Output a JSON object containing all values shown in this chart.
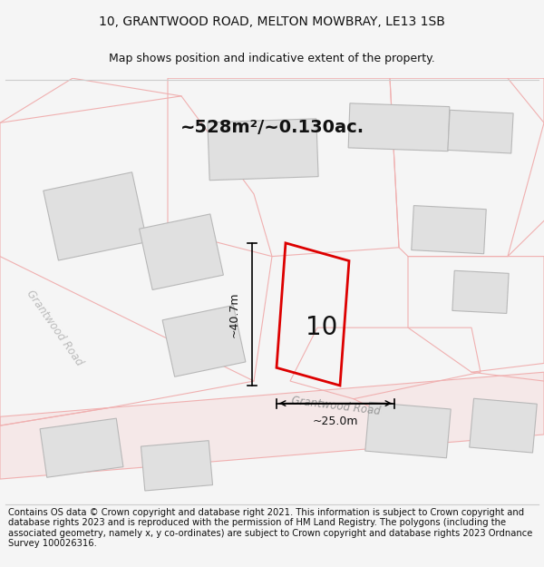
{
  "title_line1": "10, GRANTWOOD ROAD, MELTON MOWBRAY, LE13 1SB",
  "title_line2": "Map shows position and indicative extent of the property.",
  "area_text": "~528m²/~0.130ac.",
  "number_label": "10",
  "dim_width": "~25.0m",
  "dim_height": "~40.7m",
  "road_label_diag": "Grantwood Road",
  "road_label_left": "Grantwood Road",
  "footer_text": "Contains OS data © Crown copyright and database right 2021. This information is subject to Crown copyright and database rights 2023 and is reproduced with the permission of HM Land Registry. The polygons (including the associated geometry, namely x, y co-ordinates) are subject to Crown copyright and database rights 2023 Ordnance Survey 100026316.",
  "bg_color": "#f5f5f5",
  "map_bg": "#ffffff",
  "highlight_plot_color": "#dd0000",
  "road_line_color": "#f0b0b0",
  "road_fill_color": "#f5e8e8",
  "building_fill": "#e0e0e0",
  "building_stroke": "#b8b8b8",
  "text_color": "#111111",
  "footer_fontsize": 7.2,
  "title_fontsize": 10,
  "subtitle_fontsize": 9,
  "area_fontsize": 14,
  "number_fontsize": 20,
  "dim_fontsize": 9,
  "road_label_fontsize": 8.5
}
